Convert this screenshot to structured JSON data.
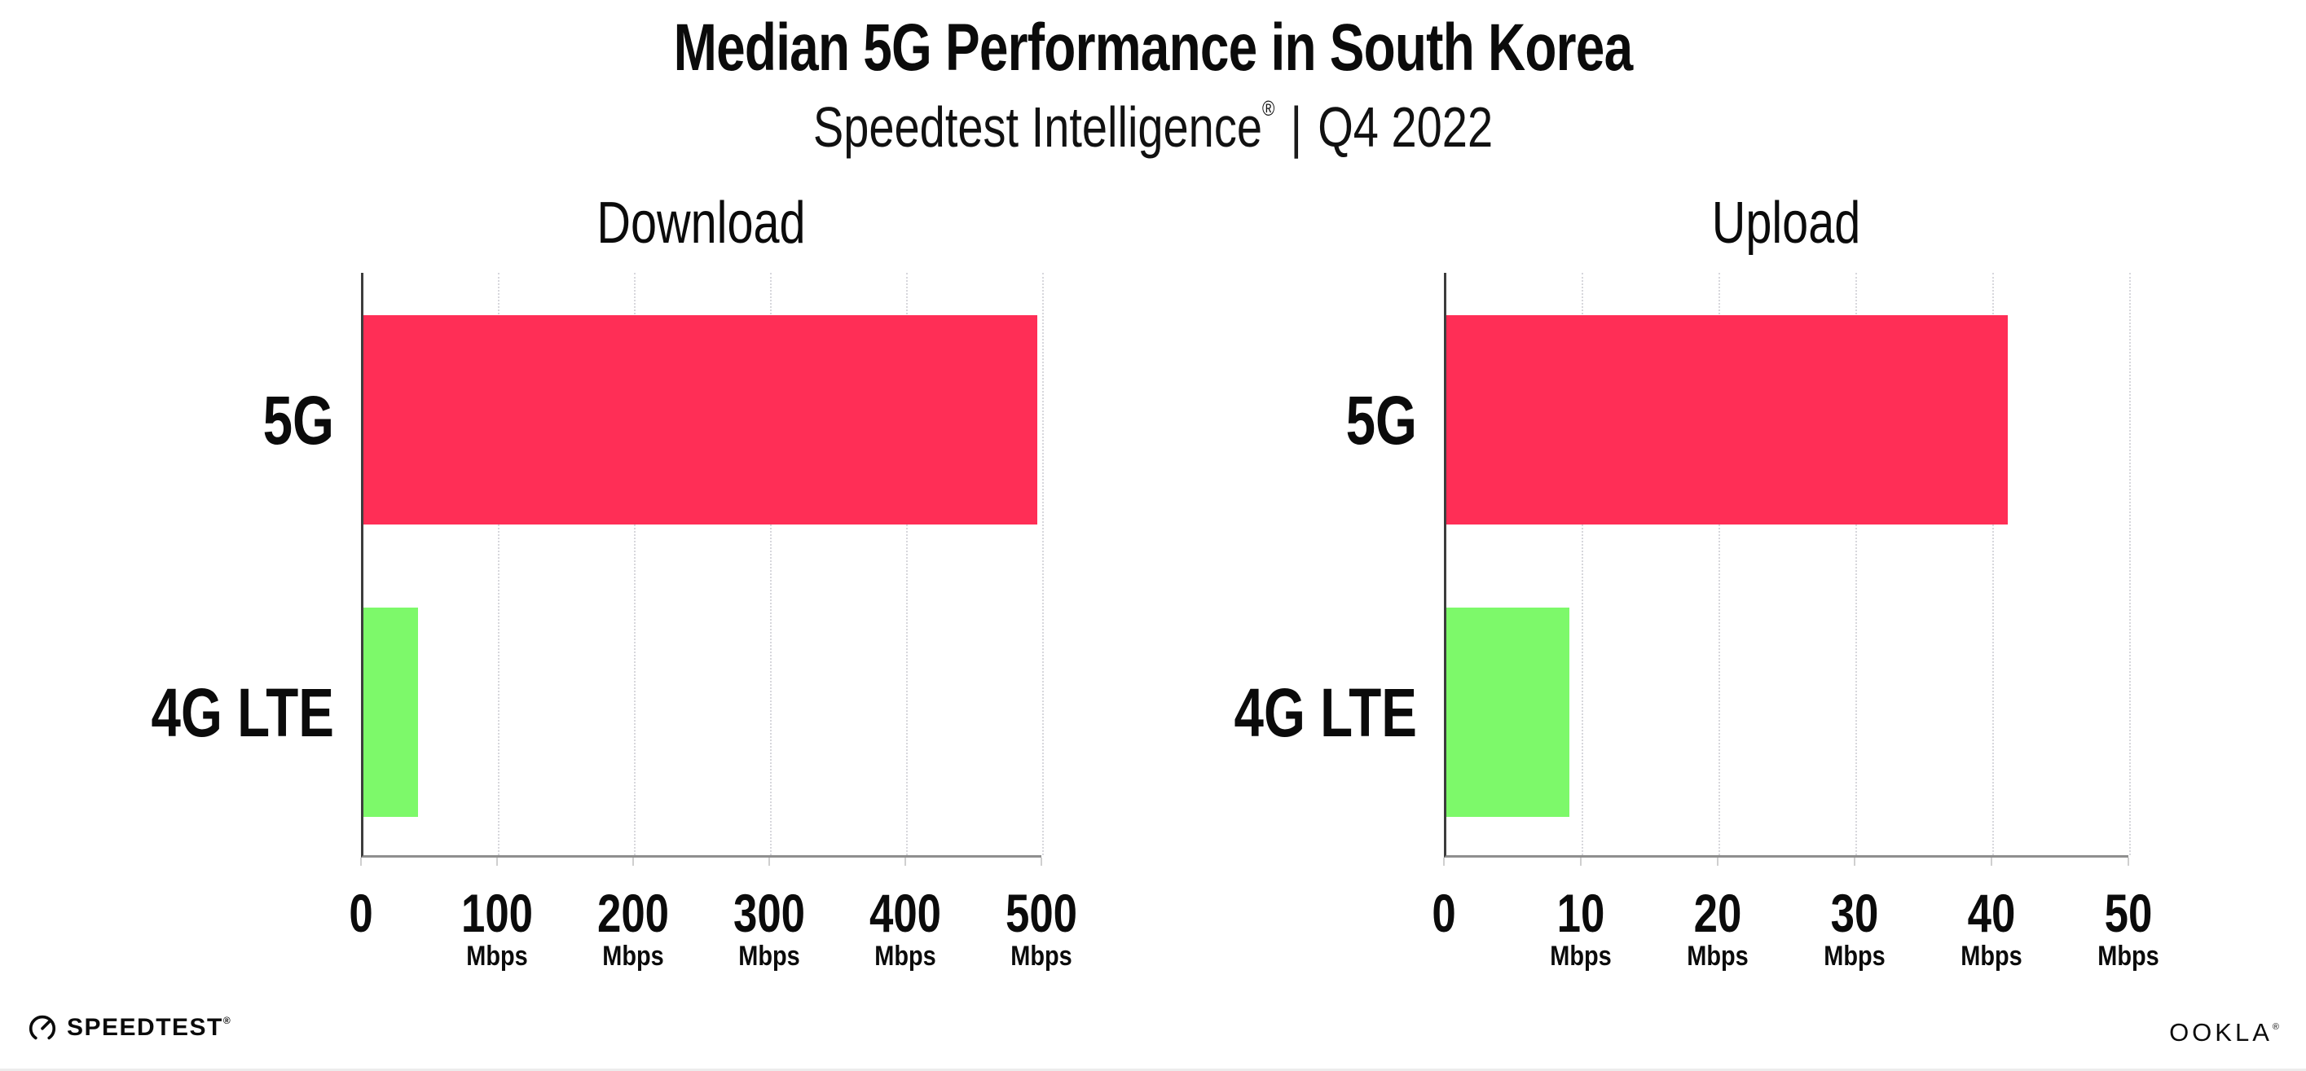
{
  "header": {
    "title": "Median 5G Performance in South Korea",
    "subtitle_brand": "Speedtest Intelligence",
    "subtitle_mark": "®",
    "subtitle_separator": "|",
    "subtitle_period": "Q4 2022"
  },
  "colors": {
    "bar_5g": "#FF2E56",
    "bar_4g_lte": "#7DF96A",
    "text": "#0B0B0B",
    "y_axis": "#3D3D3D",
    "x_axis": "#8F8F8F",
    "gridline": "#D7D7DC",
    "background": "#FFFFFF"
  },
  "chart_data": [
    {
      "type": "bar",
      "orientation": "horizontal",
      "title": "Download",
      "categories": [
        "5G",
        "4G LTE"
      ],
      "values": [
        495,
        40
      ],
      "unit": "Mbps",
      "xlim": [
        0,
        500
      ],
      "xticks": [
        0,
        100,
        200,
        300,
        400,
        500
      ],
      "tick_unit_label": "Mbps",
      "bar_colors": [
        "#FF2E56",
        "#7DF96A"
      ],
      "grid": "vertical-dotted-major",
      "legend": "none"
    },
    {
      "type": "bar",
      "orientation": "horizontal",
      "title": "Upload",
      "categories": [
        "5G",
        "4G LTE"
      ],
      "values": [
        41,
        9
      ],
      "unit": "Mbps",
      "xlim": [
        0,
        50
      ],
      "xticks": [
        0,
        10,
        20,
        30,
        40,
        50
      ],
      "tick_unit_label": "Mbps",
      "bar_colors": [
        "#FF2E56",
        "#7DF96A"
      ],
      "grid": "vertical-dotted-major",
      "legend": "none"
    }
  ],
  "footer": {
    "speedtest_label": "SPEEDTEST",
    "speedtest_mark": "®",
    "ookla_label": "OOKLA",
    "ookla_mark": "®"
  }
}
